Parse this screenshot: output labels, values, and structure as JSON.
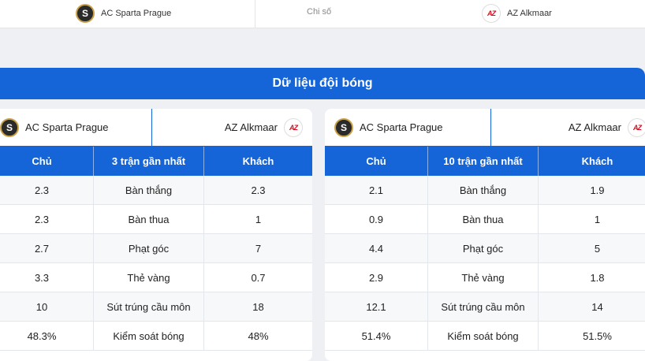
{
  "header": {
    "home_team": "AC Sparta Prague",
    "middle_label": "Chi số",
    "away_team": "AZ Alkmaar",
    "home_logo_icon": "sparta-logo-icon",
    "away_logo_icon": "az-logo-icon"
  },
  "banner": {
    "title": "Dữ liệu đội bóng"
  },
  "left_panel": {
    "home_team": "AC Sparta Prague",
    "away_team": "AZ Alkmaar",
    "columns": [
      "Chủ",
      "3 trận gần nhất",
      "Khách"
    ],
    "rows": [
      {
        "home": "2.3",
        "stat": "Bàn thắng",
        "away": "2.3"
      },
      {
        "home": "2.3",
        "stat": "Bàn thua",
        "away": "1"
      },
      {
        "home": "2.7",
        "stat": "Phạt góc",
        "away": "7"
      },
      {
        "home": "3.3",
        "stat": "Thẻ vàng",
        "away": "0.7"
      },
      {
        "home": "10",
        "stat": "Sút trúng cầu môn",
        "away": "18"
      },
      {
        "home": "48.3%",
        "stat": "Kiểm soát bóng",
        "away": "48%"
      }
    ]
  },
  "right_panel": {
    "home_team": "AC Sparta Prague",
    "away_team": "AZ Alkmaar",
    "columns": [
      "Chủ",
      "10 trận gần nhất",
      "Khách"
    ],
    "rows": [
      {
        "home": "2.1",
        "stat": "Bàn thắng",
        "away": "1.9"
      },
      {
        "home": "0.9",
        "stat": "Bàn thua",
        "away": "1"
      },
      {
        "home": "4.4",
        "stat": "Phạt góc",
        "away": "5"
      },
      {
        "home": "2.9",
        "stat": "Thẻ vàng",
        "away": "1.8"
      },
      {
        "home": "12.1",
        "stat": "Sút trúng cầu môn",
        "away": "14"
      },
      {
        "home": "51.4%",
        "stat": "Kiểm soát bóng",
        "away": "51.5%"
      }
    ]
  },
  "colors": {
    "accent": "#1565d8",
    "background": "#eef0f3"
  }
}
